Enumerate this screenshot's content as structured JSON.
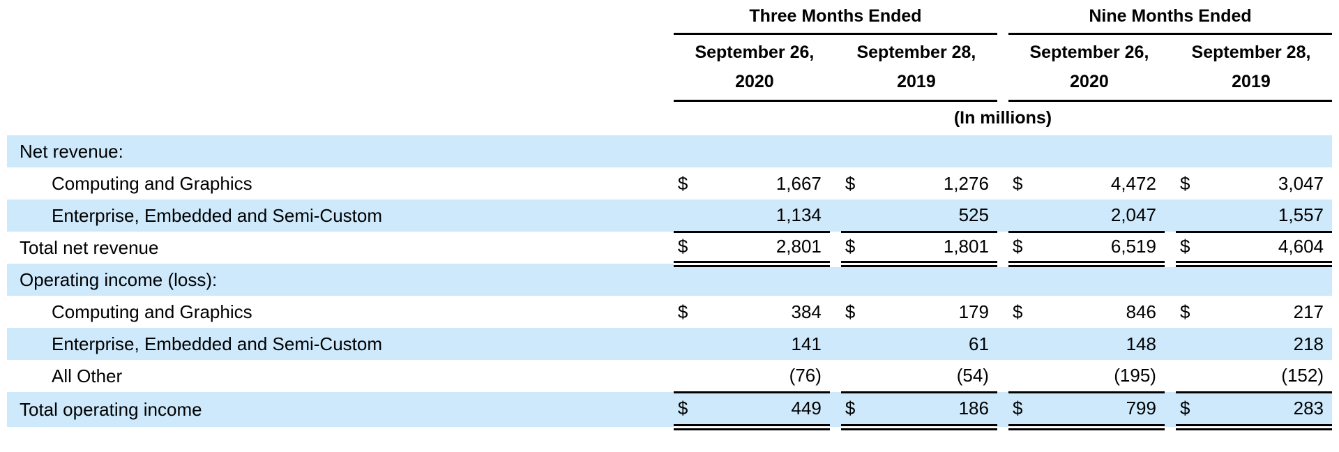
{
  "table": {
    "currency": "$",
    "shade_color": "#cde9fb",
    "units_note": "(In millions)",
    "groups": [
      {
        "title": "Three Months Ended",
        "columns": [
          {
            "line1": "September 26,",
            "line2": "2020"
          },
          {
            "line1": "September 28,",
            "line2": "2019"
          }
        ]
      },
      {
        "title": "Nine Months Ended",
        "columns": [
          {
            "line1": "September 26,",
            "line2": "2020"
          },
          {
            "line1": "September 28,",
            "line2": "2019"
          }
        ]
      }
    ],
    "rows": [
      {
        "label": "Net revenue:"
      },
      {
        "label": "Computing and Graphics",
        "values": [
          "1,667",
          "1,276",
          "4,472",
          "3,047"
        ]
      },
      {
        "label": "Enterprise, Embedded and Semi-Custom",
        "values": [
          "1,134",
          "525",
          "2,047",
          "1,557"
        ]
      },
      {
        "label": "Total net revenue",
        "values": [
          "2,801",
          "1,801",
          "6,519",
          "4,604"
        ]
      },
      {
        "label": "Operating income (loss):"
      },
      {
        "label": "Computing and Graphics",
        "values": [
          "384",
          "179",
          "846",
          "217"
        ]
      },
      {
        "label": "Enterprise, Embedded and Semi-Custom",
        "values": [
          "141",
          "61",
          "148",
          "218"
        ]
      },
      {
        "label": "All Other",
        "values": [
          "(76)",
          "(54)",
          "(195)",
          "(152)"
        ]
      },
      {
        "label": "Total operating income",
        "values": [
          "449",
          "186",
          "799",
          "283"
        ]
      }
    ]
  }
}
